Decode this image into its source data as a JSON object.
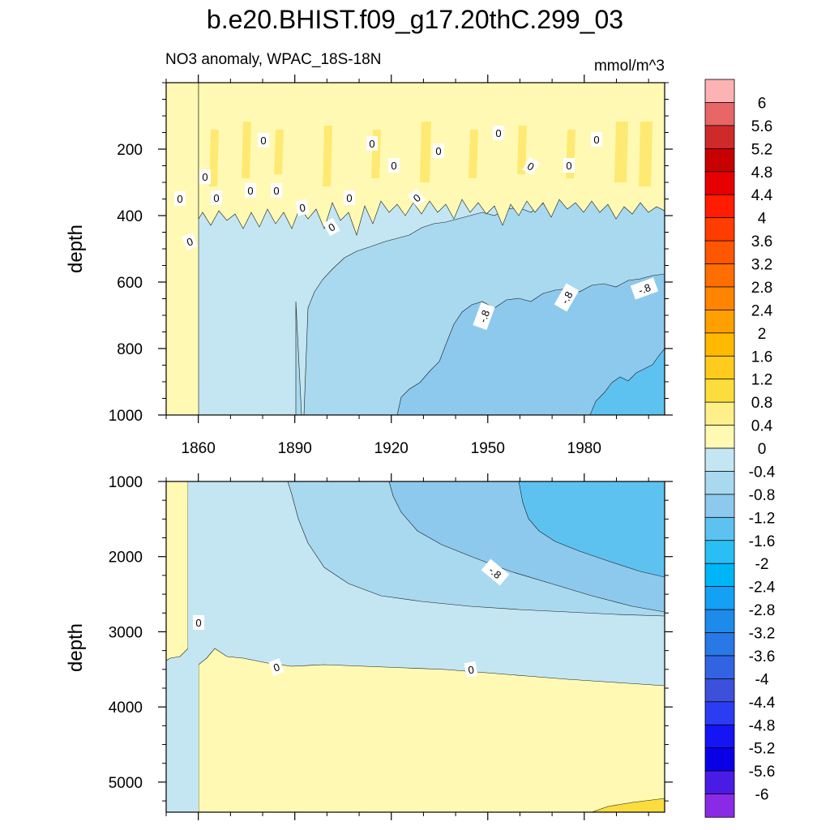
{
  "chart_data": {
    "type": "contour",
    "title": "b.e20.BHIST.f09_g17.20thC.299_03",
    "subtitle_left": "NO3 anomaly, WPAC_18S-18N",
    "units": "mmol/m^3",
    "xlabel": "",
    "ylabel": "depth",
    "xlim": [
      1850,
      2005
    ],
    "x_ticks": [
      "1860",
      "1890",
      "1920",
      "1950",
      "1980"
    ],
    "x_tick_values": [
      1860,
      1890,
      1920,
      1950,
      1980
    ],
    "panels": [
      {
        "name": "upper",
        "ylim": [
          0,
          1000
        ],
        "y_ticks": [
          "200",
          "400",
          "600",
          "800",
          "1000"
        ],
        "y_tick_values": [
          200,
          400,
          600,
          800,
          1000
        ],
        "contour_labels": [
          "0",
          "0",
          "0",
          "0",
          "0",
          "0",
          "0",
          "0",
          "0",
          "0",
          "0",
          "0",
          "0",
          "0",
          "0",
          "0",
          "0",
          "0",
          "-.8",
          "-.8",
          "-.8"
        ],
        "fields": [
          {
            "level": "0 to 0.4",
            "region": "1850-1860, all depths; 1850-2005, 30-350 m (oscillating)"
          },
          {
            "level": "0.4 to 0.8",
            "region": "narrow bands near 150-250 m"
          },
          {
            "level": "-0.4 to 0",
            "region": "1860-2005 below ~350 m"
          },
          {
            "level": "-0.8 to -0.4",
            "region": "after ~1905, deepening with time"
          },
          {
            "level": "-1.2 to -0.8",
            "region": "after ~1940, below ~650 m"
          },
          {
            "level": "-1.6 to -1.2",
            "region": "after ~1990, below ~850 m"
          }
        ]
      },
      {
        "name": "lower",
        "ylim": [
          1000,
          5400
        ],
        "y_ticks": [
          "1000",
          "2000",
          "3000",
          "4000",
          "5000"
        ],
        "y_tick_values": [
          1000,
          2000,
          3000,
          4000,
          5000
        ],
        "contour_labels": [
          "-.8",
          "0",
          "0",
          "0"
        ],
        "fields": [
          {
            "level": "0 to 0.4",
            "region": "1850-1852 upper; below ~3400 m from 1860 onwards"
          },
          {
            "level": "-0.4 to 0",
            "region": "1852-1860 full column; 1860-2005 from 1000 m to ~3400 m"
          },
          {
            "level": "-0.8 to -0.4",
            "region": "after ~1895 at 1000 m, spreading deeper over time"
          },
          {
            "level": "-1.2 to -0.8",
            "region": "after ~1920, 1000-2500 m"
          },
          {
            "level": "-1.6 to -1.2",
            "region": "after ~1960, 1000-2300 m"
          },
          {
            "level": "0.4 to 0.8",
            "region": "near 5300 m after ~1985"
          }
        ]
      }
    ],
    "colorbar": {
      "labels": [
        "6",
        "5.6",
        "5.2",
        "4.8",
        "4.4",
        "4",
        "3.6",
        "3.2",
        "2.8",
        "2.4",
        "2",
        "1.6",
        "1.2",
        "0.8",
        "0.4",
        "0",
        "-0.4",
        "-0.8",
        "-1.2",
        "-1.6",
        "-2",
        "-2.4",
        "-2.8",
        "-3.2",
        "-3.6",
        "-4",
        "-4.4",
        "-4.8",
        "-5.2",
        "-5.6",
        "-6"
      ],
      "colors": [
        "#fdb3b3",
        "#e86666",
        "#cf2a2a",
        "#c80000",
        "#e60000",
        "#ff1c00",
        "#ff3d00",
        "#ff5600",
        "#ff6e00",
        "#ff8400",
        "#ffa000",
        "#ffb900",
        "#ffcb1c",
        "#fddd3d",
        "#fdf08a",
        "#fff9b4",
        "#c3e6f2",
        "#a8d9ef",
        "#8dc9ec",
        "#5ec2f1",
        "#29bff4",
        "#00b4f8",
        "#14a0f4",
        "#1e8aea",
        "#2878e6",
        "#3264e2",
        "#3c50dc",
        "#2b3df2",
        "#1414f5",
        "#0a00e6",
        "#4b1be6",
        "#8a2ae5"
      ]
    }
  }
}
